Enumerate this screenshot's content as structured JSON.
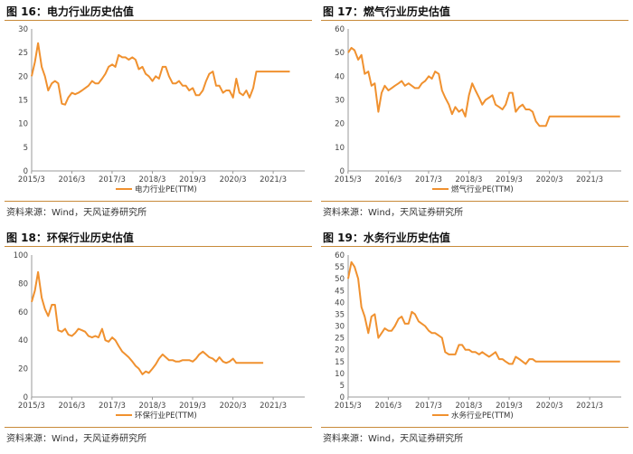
{
  "source_note": "资料来源：Wind，天风证券研究所",
  "theme": {
    "line_color": "#f0912f",
    "rule_color": "#c88a3a",
    "axis_color": "#999999"
  },
  "chart_data": [
    {
      "title": "图 16：电力行业历史估值",
      "type": "line",
      "legend": "电力行业PE(TTM)",
      "xticks": [
        "2015/3",
        "2016/3",
        "2017/3",
        "2018/3",
        "2019/3",
        "2020/3",
        "2021/3"
      ],
      "xrange": [
        2015.17,
        2021.95
      ],
      "ylim": [
        0,
        30
      ],
      "yticks": [
        0,
        5,
        10,
        15,
        20,
        25,
        30
      ],
      "series": [
        {
          "x": [
            2015.17,
            2015.25,
            2015.33,
            2015.42,
            2015.5,
            2015.58,
            2015.67,
            2015.75,
            2015.83,
            2015.92,
            2016.0,
            2016.08,
            2016.17,
            2016.25,
            2016.33,
            2016.42,
            2016.5,
            2016.58,
            2016.67,
            2016.75,
            2016.83,
            2016.92,
            2017.0,
            2017.08,
            2017.17,
            2017.25,
            2017.33,
            2017.42,
            2017.5,
            2017.58,
            2017.67,
            2017.75,
            2017.83,
            2017.92,
            2018.0,
            2018.08,
            2018.17,
            2018.25,
            2018.33,
            2018.42,
            2018.5,
            2018.58,
            2018.67,
            2018.75,
            2018.83,
            2018.92,
            2019.0,
            2019.08,
            2019.17,
            2019.25,
            2019.33,
            2019.42,
            2019.5,
            2019.58,
            2019.67,
            2019.75,
            2019.83,
            2019.92,
            2020.0,
            2020.08,
            2020.17,
            2020.25,
            2020.33,
            2020.42,
            2020.5,
            2020.58,
            2020.67,
            2020.75,
            2020.83,
            2020.92,
            2021.0,
            2021.08,
            2021.17,
            2021.25,
            2021.33,
            2021.42,
            2021.5,
            2021.58
          ],
          "y": [
            20,
            23,
            27,
            22,
            20,
            17,
            18.5,
            19,
            18.5,
            14.2,
            14,
            15.5,
            16.5,
            16.2,
            16.5,
            17,
            17.5,
            18,
            19,
            18.5,
            18.5,
            19.5,
            20.5,
            22,
            22.5,
            22,
            24.5,
            24,
            24,
            23.5,
            24,
            23.5,
            21.5,
            22,
            20.5,
            20,
            19,
            20,
            19.5,
            22,
            22,
            20,
            18.5,
            18.5,
            19,
            18,
            18,
            17,
            17.5,
            16,
            16,
            17,
            19,
            20.5,
            21,
            18,
            18,
            16.5,
            17,
            17,
            15.5,
            19.5,
            16.5,
            16,
            17,
            15.5,
            17.5,
            21,
            21,
            21,
            21,
            21,
            21,
            21,
            21,
            21,
            21,
            21
          ]
        }
      ]
    },
    {
      "title": "图 17：燃气行业历史估值",
      "type": "line",
      "legend": "燃气行业PE(TTM)",
      "xticks": [
        "2015/3",
        "2016/3",
        "2017/3",
        "2018/3",
        "2019/3",
        "2020/3",
        "2021/3"
      ],
      "xrange": [
        2015.17,
        2021.95
      ],
      "ylim": [
        0,
        60
      ],
      "yticks": [
        0,
        10,
        20,
        30,
        40,
        50,
        60
      ],
      "series": [
        {
          "x": [
            2015.17,
            2015.25,
            2015.33,
            2015.42,
            2015.5,
            2015.58,
            2015.67,
            2015.75,
            2015.83,
            2015.92,
            2016.0,
            2016.08,
            2016.17,
            2016.25,
            2016.33,
            2016.42,
            2016.5,
            2016.58,
            2016.67,
            2016.75,
            2016.83,
            2016.92,
            2017.0,
            2017.08,
            2017.17,
            2017.25,
            2017.33,
            2017.42,
            2017.5,
            2017.58,
            2017.67,
            2017.75,
            2017.83,
            2017.92,
            2018.0,
            2018.08,
            2018.17,
            2018.25,
            2018.33,
            2018.42,
            2018.5,
            2018.58,
            2018.67,
            2018.75,
            2018.83,
            2018.92,
            2019.0,
            2019.08,
            2019.17,
            2019.25,
            2019.33,
            2019.42,
            2019.5,
            2019.58,
            2019.67,
            2019.75,
            2019.83,
            2019.92,
            2020.0,
            2020.08,
            2020.17,
            2020.25,
            2020.33,
            2020.42,
            2020.5,
            2020.58,
            2020.67,
            2020.75,
            2020.83,
            2020.92,
            2021.0,
            2021.08,
            2021.17,
            2021.25,
            2021.33,
            2021.42,
            2021.5,
            2021.58,
            2021.67,
            2021.75,
            2021.83,
            2021.92
          ],
          "y": [
            50,
            52,
            51,
            47,
            49,
            41,
            42,
            36,
            37,
            25,
            33,
            36,
            34,
            35,
            36,
            37,
            38,
            36,
            37,
            36,
            35,
            35,
            37,
            38,
            40,
            39,
            42,
            41,
            34,
            31,
            28,
            24,
            27,
            25,
            26,
            23,
            32,
            37,
            34,
            31,
            28,
            30,
            31,
            32,
            28,
            27,
            26,
            28,
            33,
            33,
            25,
            27,
            28,
            26,
            26,
            25,
            21,
            19,
            19,
            19,
            23,
            23,
            23,
            23,
            23,
            23,
            23,
            23,
            23,
            23,
            23,
            23,
            23,
            23,
            23,
            23,
            23,
            23,
            23,
            23,
            23,
            23
          ]
        }
      ]
    },
    {
      "title": "图 18：环保行业历史估值",
      "type": "line",
      "legend": "环保行业PE(TTM)",
      "xticks": [
        "2015/3",
        "2016/3",
        "2017/3",
        "2018/3",
        "2019/3",
        "2020/3",
        "2021/3"
      ],
      "xrange": [
        2015.17,
        2021.95
      ],
      "ylim": [
        0,
        100
      ],
      "yticks": [
        0,
        20,
        40,
        60,
        80,
        100
      ],
      "series": [
        {
          "x": [
            2015.17,
            2015.25,
            2015.33,
            2015.42,
            2015.5,
            2015.58,
            2015.67,
            2015.75,
            2015.83,
            2015.92,
            2016.0,
            2016.08,
            2016.17,
            2016.25,
            2016.33,
            2016.42,
            2016.5,
            2016.58,
            2016.67,
            2016.75,
            2016.83,
            2016.92,
            2017.0,
            2017.08,
            2017.17,
            2017.25,
            2017.33,
            2017.42,
            2017.5,
            2017.58,
            2017.67,
            2017.75,
            2017.83,
            2017.92,
            2018.0,
            2018.08,
            2018.17,
            2018.25,
            2018.33,
            2018.42,
            2018.5,
            2018.58,
            2018.67,
            2018.75,
            2018.83,
            2018.92,
            2019.0,
            2019.08,
            2019.17,
            2019.25,
            2019.33,
            2019.42,
            2019.5,
            2019.58,
            2019.67,
            2019.75,
            2019.83,
            2019.92,
            2020.0,
            2020.08,
            2020.17,
            2020.25,
            2020.33,
            2020.42,
            2020.5,
            2020.58,
            2020.67,
            2020.75,
            2020.83,
            2020.92
          ],
          "y": [
            67,
            75,
            88,
            70,
            62,
            57,
            65,
            65,
            47,
            46,
            48,
            44,
            43,
            45,
            48,
            47,
            46,
            43,
            42,
            43,
            42,
            48,
            40,
            39,
            42,
            40,
            36,
            32,
            30,
            28,
            25,
            22,
            20,
            16,
            18,
            17,
            20,
            23,
            27,
            30,
            28,
            26,
            26,
            25,
            25,
            26,
            26,
            26,
            25,
            27,
            30,
            32,
            30,
            28,
            27,
            25,
            28,
            25,
            24,
            25,
            27,
            24,
            24,
            24,
            24,
            24,
            24,
            24,
            24,
            24
          ]
        }
      ]
    },
    {
      "title": "图 19：水务行业历史估值",
      "type": "line",
      "legend": "水务行业PE(TTM)",
      "xticks": [
        "2015/3",
        "2016/3",
        "2017/3",
        "2018/3",
        "2019/3",
        "2020/3",
        "2021/3"
      ],
      "xrange": [
        2015.17,
        2021.95
      ],
      "ylim": [
        0,
        60
      ],
      "yticks": [
        0,
        5,
        10,
        15,
        20,
        25,
        30,
        35,
        40,
        45,
        50,
        55,
        60
      ],
      "series": [
        {
          "x": [
            2015.17,
            2015.25,
            2015.33,
            2015.42,
            2015.5,
            2015.58,
            2015.67,
            2015.75,
            2015.83,
            2015.92,
            2016.0,
            2016.08,
            2016.17,
            2016.25,
            2016.33,
            2016.42,
            2016.5,
            2016.58,
            2016.67,
            2016.75,
            2016.83,
            2016.92,
            2017.0,
            2017.08,
            2017.17,
            2017.25,
            2017.33,
            2017.42,
            2017.5,
            2017.58,
            2017.67,
            2017.75,
            2017.83,
            2017.92,
            2018.0,
            2018.08,
            2018.17,
            2018.25,
            2018.33,
            2018.42,
            2018.5,
            2018.58,
            2018.67,
            2018.75,
            2018.83,
            2018.92,
            2019.0,
            2019.08,
            2019.17,
            2019.25,
            2019.33,
            2019.42,
            2019.5,
            2019.58,
            2019.67,
            2019.75,
            2019.83,
            2019.92,
            2020.0,
            2020.08,
            2020.17,
            2020.25,
            2020.33,
            2020.42,
            2020.5,
            2020.58,
            2020.67,
            2020.75,
            2020.83,
            2020.92,
            2021.0,
            2021.08,
            2021.17,
            2021.25,
            2021.33,
            2021.42,
            2021.5,
            2021.58,
            2021.67,
            2021.75,
            2021.83,
            2021.92
          ],
          "y": [
            50,
            57,
            55,
            50,
            38,
            34,
            27,
            34,
            35,
            25,
            27,
            29,
            28,
            28,
            30,
            33,
            34,
            31,
            31,
            36,
            35,
            32,
            31,
            30,
            28,
            27,
            27,
            26,
            25,
            19,
            18,
            18,
            18,
            22,
            22,
            20,
            20,
            19,
            19,
            18,
            19,
            18,
            17,
            18,
            19,
            16,
            16,
            15,
            14,
            14,
            17,
            16,
            15,
            14,
            16,
            16,
            15,
            15,
            15,
            15,
            15,
            15,
            15,
            15,
            15,
            15,
            15,
            15,
            15,
            15,
            15,
            15,
            15,
            15,
            15,
            15,
            15,
            15,
            15,
            15,
            15,
            15
          ]
        }
      ]
    }
  ]
}
